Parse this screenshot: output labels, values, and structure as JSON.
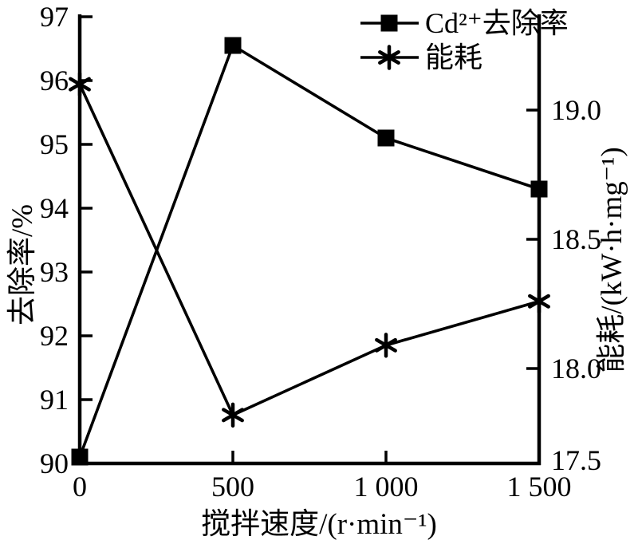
{
  "chart_data": {
    "type": "line",
    "title": "",
    "xlabel": "搅拌速度/(r·min⁻¹)",
    "x": [
      0,
      500,
      1000,
      1500
    ],
    "x_tick_labels": [
      "0",
      "500",
      "1 000",
      "1 500"
    ],
    "x_range": [
      0,
      1500
    ],
    "grid": false,
    "legend_position": "top-inside",
    "color": "#000000",
    "background": "#ffffff",
    "left_axis": {
      "label": "去除率/%",
      "range": [
        90,
        97
      ],
      "ticks": [
        97,
        96,
        95,
        94,
        93,
        92,
        91,
        90
      ],
      "tick_labels": [
        "97",
        "96",
        "95",
        "94",
        "93",
        "92",
        "91",
        "90"
      ]
    },
    "right_axis": {
      "label": "能耗/(kW·h·mg⁻¹)",
      "ticks": [
        19.0,
        18.5,
        18.0,
        17.5
      ],
      "tick_labels": [
        "19.0",
        "18.5",
        "18.0",
        "17.5"
      ]
    },
    "series": [
      {
        "name": "Cd²⁺去除率",
        "axis": "left",
        "marker": "square",
        "values": [
          90.1,
          96.55,
          95.1,
          94.3
        ]
      },
      {
        "name": "能耗",
        "axis": "right",
        "marker": "asterisk",
        "values": [
          19.1,
          17.82,
          18.09,
          18.26
        ]
      }
    ]
  }
}
